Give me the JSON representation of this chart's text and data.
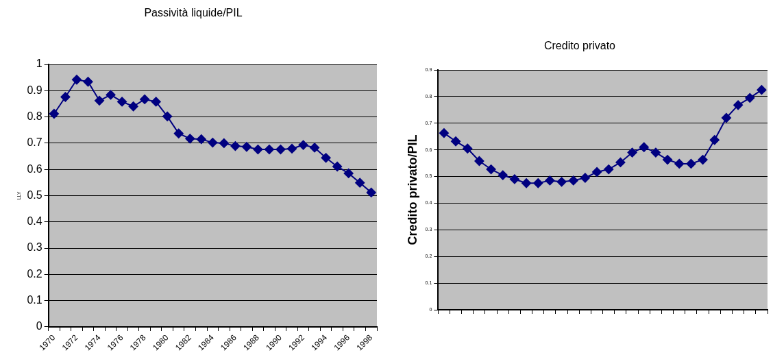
{
  "chart_data": [
    {
      "type": "line",
      "title": "Passività liquide/PIL",
      "ylabel": "LLY",
      "categories": [
        "1970",
        null,
        "1972",
        null,
        "1974",
        null,
        "1976",
        null,
        "1978",
        null,
        "1980",
        null,
        "1982",
        null,
        "1984",
        null,
        "1986",
        null,
        "1988",
        null,
        "1990",
        null,
        "1992",
        null,
        "1994",
        null,
        "1996",
        null,
        "1998"
      ],
      "values": [
        0.812,
        0.876,
        0.942,
        0.934,
        0.862,
        0.884,
        0.858,
        0.84,
        0.867,
        0.858,
        0.802,
        0.737,
        0.717,
        0.715,
        0.702,
        0.7,
        0.689,
        0.686,
        0.676,
        0.676,
        0.676,
        0.679,
        0.693,
        0.683,
        0.644,
        0.611,
        0.585,
        0.549,
        0.512
      ],
      "color": "#000080",
      "ylim": [
        0,
        1
      ],
      "yticks": [
        0,
        0.1,
        0.2,
        0.3,
        0.4,
        0.5,
        0.6,
        0.7,
        0.8,
        0.9,
        1
      ],
      "grid": "y",
      "marker": "diamond"
    },
    {
      "type": "line",
      "title": "Credito privato",
      "ylabel": "Credito privato/PIL",
      "categories": [
        null,
        null,
        null,
        null,
        null,
        null,
        null,
        null,
        null,
        null,
        null,
        null,
        null,
        null,
        null,
        null,
        null,
        null,
        null,
        null,
        null,
        null,
        null,
        null,
        null,
        null,
        null,
        null
      ],
      "values": [
        0.663,
        0.632,
        0.605,
        0.558,
        0.527,
        0.505,
        0.49,
        0.475,
        0.475,
        0.485,
        0.48,
        0.485,
        0.495,
        0.517,
        0.527,
        0.553,
        0.59,
        0.61,
        0.59,
        0.563,
        0.548,
        0.548,
        0.563,
        0.637,
        0.72,
        0.768,
        0.795,
        0.825
      ],
      "color": "#000080",
      "ylim": [
        0,
        0.9
      ],
      "yticks": [
        0,
        0.1,
        0.2,
        0.3,
        0.4,
        0.5,
        0.6,
        0.7,
        0.8,
        0.9
      ],
      "grid": "y",
      "marker": "diamond",
      "tick_labels": "y"
    }
  ]
}
